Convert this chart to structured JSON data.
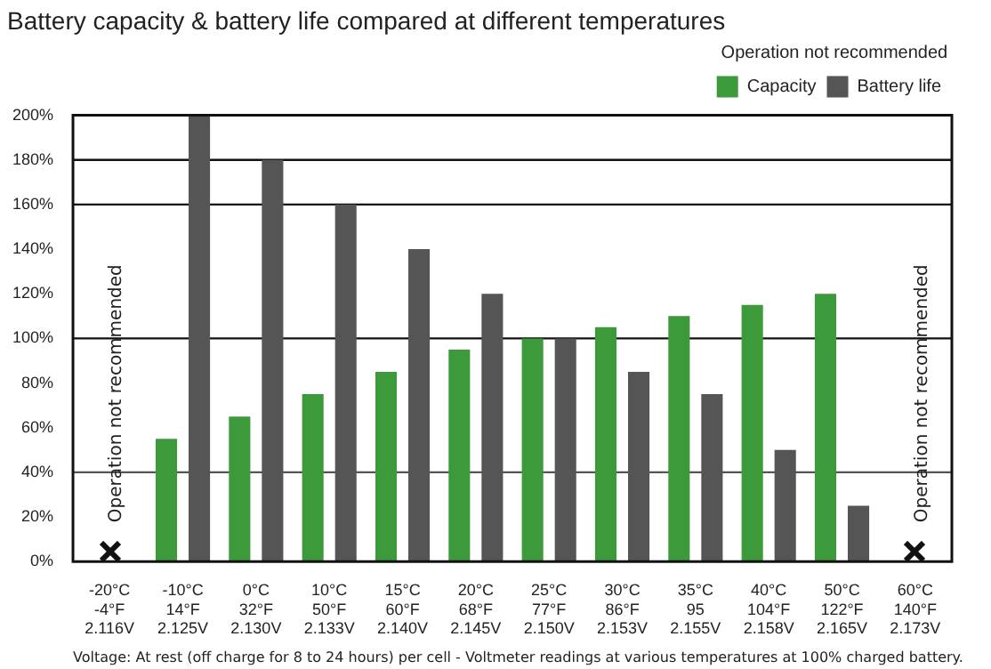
{
  "chart_data": {
    "type": "bar",
    "title": "Battery capacity & battery life compared at different temperatures",
    "categories": [
      "-20°C\n-4°F\n2.116V",
      "-10°C\n14°F\n2.125V",
      "0°C\n32°F\n2.130V",
      "10°C\n50°F\n2.133V",
      "15°C\n60°F\n2.140V",
      "20°C\n68°F\n2.145V",
      "25°C\n77°F\n2.150V",
      "30°C\n86°F\n2.153V",
      "35°C\n95\n2.155V",
      "40°C\n104°F\n2.158V",
      "50°C\n122°F\n2.165V",
      "60°C\n140°F\n2.173V"
    ],
    "series": [
      {
        "name": "Capacity",
        "color": "#3d9a3a",
        "values": [
          null,
          55,
          65,
          75,
          85,
          95,
          100,
          105,
          110,
          115,
          120,
          null
        ]
      },
      {
        "name": "Battery life",
        "color": "#555555",
        "values": [
          null,
          200,
          180,
          160,
          140,
          120,
          100,
          85,
          75,
          50,
          25,
          null
        ]
      }
    ],
    "ylim": [
      0,
      200
    ],
    "yticks": [
      {
        "value": 0,
        "label": "0%"
      },
      {
        "value": 20,
        "label": "20%"
      },
      {
        "value": 40,
        "label": "40%"
      },
      {
        "value": 60,
        "label": "60%"
      },
      {
        "value": 80,
        "label": "80%"
      },
      {
        "value": 100,
        "label": "100%"
      },
      {
        "value": 120,
        "label": "120%"
      },
      {
        "value": 140,
        "label": "140%"
      },
      {
        "value": 160,
        "label": "160%"
      },
      {
        "value": 180,
        "label": "180%"
      },
      {
        "value": 200,
        "label": "200%"
      }
    ],
    "ref_lines": [
      {
        "axis": "y",
        "value": 40,
        "color": "#555555"
      },
      {
        "axis": "y",
        "value": 100,
        "color": "#111111"
      },
      {
        "axis": "y",
        "value": 160,
        "color": "#111111"
      },
      {
        "axis": "y",
        "value": 180,
        "color": "#111111"
      }
    ],
    "legend": "top right",
    "legend_title": "Operation not recommended",
    "grid": false,
    "annotations": [
      "Operation not recommended",
      "Operation not recommended",
      "Voltage: At rest (off charge for 8 to 24 hours) per cell - Voltmeter readings at various temperatures at 100% charged battery."
    ]
  }
}
